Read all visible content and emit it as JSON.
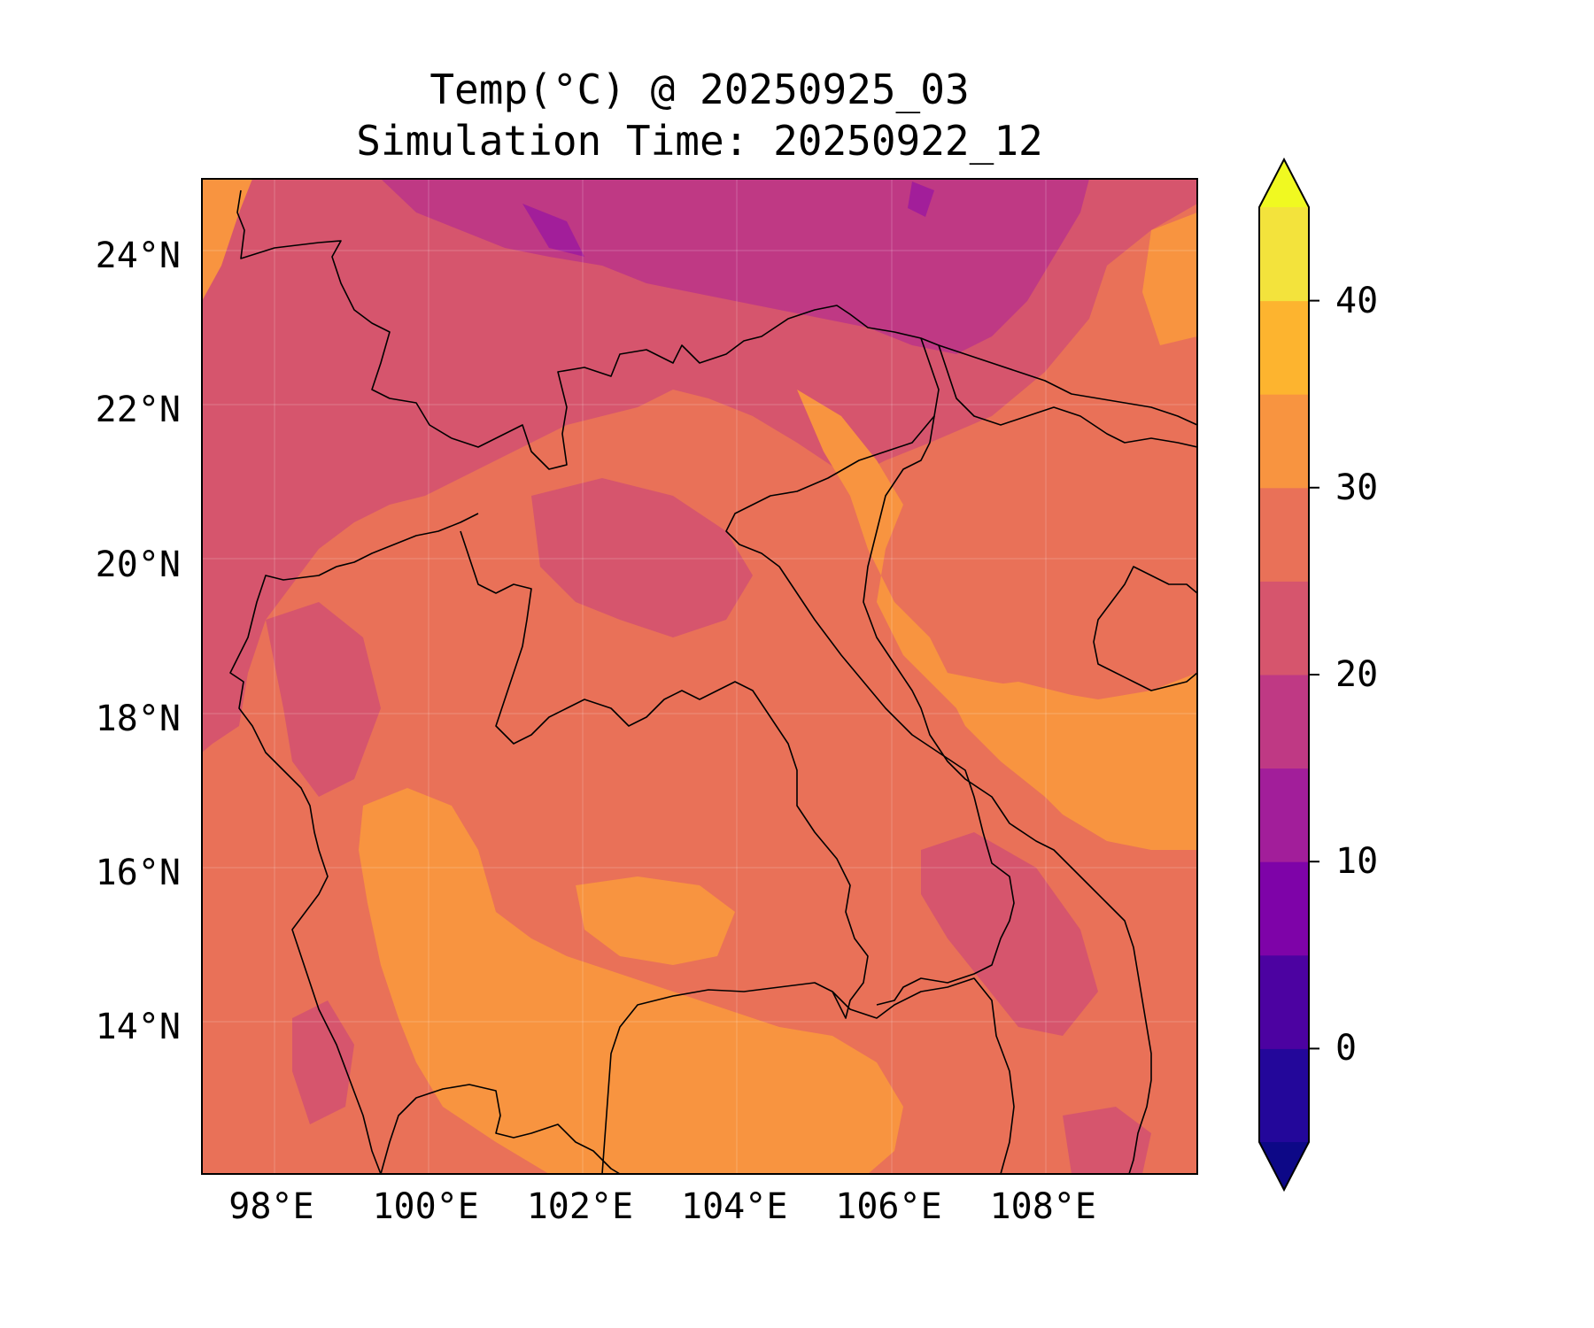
{
  "title": {
    "line1": "Temp(°C) @ 20250925_03",
    "line2": "Simulation Time: 20250922_12"
  },
  "map": {
    "extent": {
      "lon": [
        97.1,
        110.0
      ],
      "lat": [
        12.1,
        25.0
      ]
    },
    "lat_ticks": [
      {
        "value": 24,
        "label": "24°N"
      },
      {
        "value": 22,
        "label": "22°N"
      },
      {
        "value": 20,
        "label": "20°N"
      },
      {
        "value": 18,
        "label": "18°N"
      },
      {
        "value": 16,
        "label": "16°N"
      },
      {
        "value": 14,
        "label": "14°N"
      }
    ],
    "lon_ticks": [
      {
        "value": 98,
        "label": "98°E"
      },
      {
        "value": 100,
        "label": "100°E"
      },
      {
        "value": 102,
        "label": "102°E"
      },
      {
        "value": 104,
        "label": "104°E"
      },
      {
        "value": 106,
        "label": "106°E"
      },
      {
        "value": 108,
        "label": "108°E"
      }
    ],
    "gridlines": true,
    "colormap": "plasma"
  },
  "colorbar": {
    "range": [
      -5,
      45
    ],
    "extend": "both",
    "ticks": [
      {
        "value": 40,
        "label": "40"
      },
      {
        "value": 30,
        "label": "30"
      },
      {
        "value": 20,
        "label": "20"
      },
      {
        "value": 10,
        "label": "10"
      },
      {
        "value": 0,
        "label": "0"
      }
    ],
    "levels": [
      {
        "from": -5,
        "to": 0,
        "color": "#23079a"
      },
      {
        "from": 0,
        "to": 5,
        "color": "#4c02a1"
      },
      {
        "from": 5,
        "to": 10,
        "color": "#7e03a8"
      },
      {
        "from": 10,
        "to": 15,
        "color": "#a21e9a"
      },
      {
        "from": 15,
        "to": 20,
        "color": "#bf3984"
      },
      {
        "from": 20,
        "to": 25,
        "color": "#d6556d"
      },
      {
        "from": 25,
        "to": 30,
        "color": "#e97158"
      },
      {
        "from": 30,
        "to": 35,
        "color": "#f89440"
      },
      {
        "from": 35,
        "to": 40,
        "color": "#fdb42f"
      },
      {
        "from": 40,
        "to": 45,
        "color": "#f3e33c"
      }
    ],
    "under_color": "#0d0887",
    "over_color": "#f0f921"
  }
}
